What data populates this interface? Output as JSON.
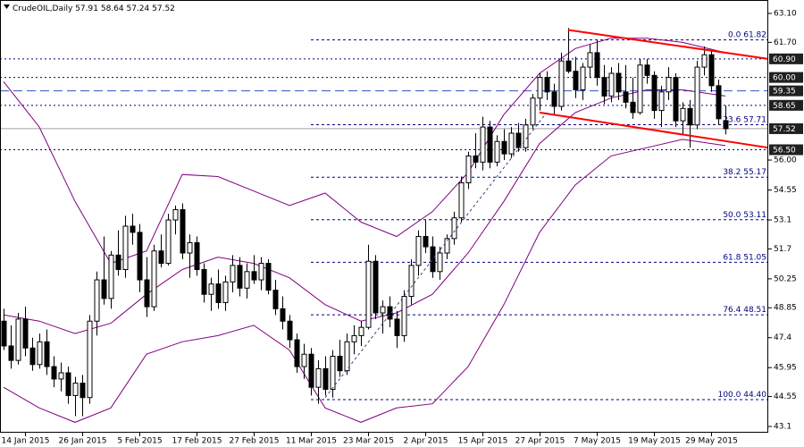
{
  "chart_data": {
    "type": "candlestick",
    "title": "CrudeOIL,Daily",
    "ohlc": [
      [
        48.2,
        48.8,
        46.8,
        47.0
      ],
      [
        47.0,
        48.0,
        45.9,
        46.3
      ],
      [
        46.3,
        48.6,
        46.1,
        48.3
      ],
      [
        48.3,
        48.9,
        46.5,
        46.9
      ],
      [
        46.9,
        47.4,
        45.8,
        46.1
      ],
      [
        46.1,
        47.6,
        45.9,
        47.2
      ],
      [
        47.2,
        47.8,
        45.6,
        46.0
      ],
      [
        46.0,
        46.5,
        45.0,
        45.4
      ],
      [
        45.4,
        46.2,
        44.8,
        45.7
      ],
      [
        45.7,
        46.0,
        44.2,
        44.6
      ],
      [
        44.6,
        45.5,
        43.6,
        45.2
      ],
      [
        45.2,
        45.6,
        43.6,
        44.5
      ],
      [
        44.5,
        48.5,
        44.2,
        48.2
      ],
      [
        48.2,
        50.6,
        47.5,
        50.2
      ],
      [
        50.2,
        52.3,
        49.0,
        49.3
      ],
      [
        49.3,
        51.6,
        48.8,
        51.4
      ],
      [
        51.4,
        52.6,
        50.4,
        50.7
      ],
      [
        50.7,
        53.3,
        50.3,
        52.8
      ],
      [
        52.8,
        53.4,
        51.9,
        52.5
      ],
      [
        52.5,
        52.9,
        49.6,
        50.2
      ],
      [
        50.2,
        51.3,
        48.4,
        48.9
      ],
      [
        48.9,
        51.9,
        48.7,
        51.6
      ],
      [
        51.6,
        52.4,
        50.8,
        51.0
      ],
      [
        51.0,
        53.4,
        50.9,
        53.1
      ],
      [
        53.1,
        53.8,
        52.4,
        53.6
      ],
      [
        53.6,
        53.9,
        51.2,
        51.5
      ],
      [
        51.5,
        52.4,
        50.3,
        52.0
      ],
      [
        52.0,
        52.3,
        50.4,
        50.7
      ],
      [
        50.7,
        51.0,
        49.1,
        49.5
      ],
      [
        49.5,
        50.3,
        48.7,
        50.0
      ],
      [
        50.0,
        50.7,
        48.8,
        49.1
      ],
      [
        49.1,
        50.4,
        48.7,
        50.1
      ],
      [
        50.1,
        51.4,
        49.6,
        50.9
      ],
      [
        50.9,
        51.3,
        49.4,
        49.8
      ],
      [
        49.8,
        51.0,
        49.3,
        50.6
      ],
      [
        50.6,
        51.4,
        50.0,
        50.2
      ],
      [
        50.2,
        51.3,
        49.7,
        51.0
      ],
      [
        51.0,
        51.2,
        49.5,
        49.7
      ],
      [
        49.7,
        50.2,
        48.5,
        48.8
      ],
      [
        48.8,
        49.4,
        47.8,
        48.2
      ],
      [
        48.2,
        48.5,
        46.9,
        47.3
      ],
      [
        47.3,
        47.6,
        45.7,
        46.0
      ],
      [
        46.0,
        47.1,
        45.4,
        46.6
      ],
      [
        46.6,
        46.9,
        44.6,
        45.0
      ],
      [
        45.0,
        46.3,
        44.2,
        45.9
      ],
      [
        45.9,
        46.5,
        44.6,
        44.9
      ],
      [
        44.9,
        46.8,
        44.5,
        46.5
      ],
      [
        46.5,
        47.3,
        45.5,
        45.8
      ],
      [
        45.8,
        47.6,
        45.6,
        47.2
      ],
      [
        47.2,
        48.0,
        46.6,
        47.5
      ],
      [
        47.5,
        48.2,
        47.0,
        47.9
      ],
      [
        47.9,
        51.9,
        47.8,
        51.1
      ],
      [
        51.1,
        51.4,
        48.3,
        48.6
      ],
      [
        48.6,
        49.2,
        47.6,
        48.9
      ],
      [
        48.9,
        49.4,
        47.9,
        48.3
      ],
      [
        48.3,
        48.7,
        46.9,
        47.5
      ],
      [
        47.5,
        49.7,
        47.2,
        49.4
      ],
      [
        49.4,
        51.2,
        49.0,
        50.9
      ],
      [
        50.9,
        52.6,
        50.4,
        52.3
      ],
      [
        52.3,
        53.1,
        51.5,
        51.8
      ],
      [
        51.8,
        52.3,
        50.3,
        50.6
      ],
      [
        50.6,
        51.8,
        50.2,
        51.5
      ],
      [
        51.5,
        52.4,
        51.2,
        52.2
      ],
      [
        52.2,
        53.5,
        51.9,
        53.2
      ],
      [
        53.2,
        55.2,
        53.0,
        54.9
      ],
      [
        54.9,
        56.4,
        54.6,
        56.2
      ],
      [
        56.2,
        57.3,
        55.6,
        55.9
      ],
      [
        55.9,
        58.1,
        55.5,
        57.6
      ],
      [
        57.6,
        57.9,
        55.6,
        55.9
      ],
      [
        55.9,
        57.2,
        55.7,
        56.9
      ],
      [
        56.9,
        57.5,
        56.0,
        56.3
      ],
      [
        56.3,
        57.6,
        56.1,
        57.3
      ],
      [
        57.3,
        57.8,
        56.4,
        56.6
      ],
      [
        56.6,
        58.0,
        56.4,
        57.7
      ],
      [
        57.7,
        59.2,
        57.5,
        59.0
      ],
      [
        59.0,
        60.2,
        58.4,
        60.0
      ],
      [
        60.0,
        60.3,
        58.9,
        59.3
      ],
      [
        59.3,
        59.7,
        58.2,
        58.6
      ],
      [
        58.6,
        61.2,
        58.4,
        60.8
      ],
      [
        60.8,
        62.4,
        60.2,
        60.3
      ],
      [
        60.3,
        61.0,
        59.0,
        59.4
      ],
      [
        59.4,
        60.7,
        58.9,
        60.5
      ],
      [
        60.5,
        61.6,
        60.0,
        61.2
      ],
      [
        61.2,
        61.8,
        59.6,
        60.0
      ],
      [
        60.0,
        60.6,
        58.7,
        59.1
      ],
      [
        59.1,
        60.5,
        58.8,
        60.2
      ],
      [
        60.2,
        60.7,
        58.9,
        59.3
      ],
      [
        59.3,
        60.6,
        58.5,
        58.8
      ],
      [
        58.8,
        60.0,
        58.0,
        58.3
      ],
      [
        58.3,
        60.9,
        58.2,
        60.6
      ],
      [
        60.6,
        60.9,
        59.7,
        60.1
      ],
      [
        60.1,
        60.3,
        58.0,
        58.4
      ],
      [
        58.4,
        59.6,
        57.6,
        59.3
      ],
      [
        59.3,
        60.5,
        58.9,
        60.0
      ],
      [
        60.0,
        60.2,
        57.6,
        57.9
      ],
      [
        57.9,
        58.8,
        57.2,
        58.5
      ],
      [
        58.5,
        58.9,
        56.6,
        57.7
      ],
      [
        57.7,
        60.8,
        57.5,
        60.5
      ],
      [
        60.5,
        61.5,
        60.1,
        61.1
      ],
      [
        61.1,
        61.3,
        59.3,
        59.6
      ],
      [
        59.6,
        59.9,
        57.7,
        58.0
      ],
      [
        57.91,
        58.64,
        57.24,
        57.52
      ]
    ],
    "bull_color": "#ffffff",
    "bear_color": "#000000",
    "bands": {
      "color": "#800080",
      "x": [
        0,
        5,
        10,
        15,
        20,
        25,
        30,
        35,
        40,
        45,
        50,
        55,
        60,
        65,
        70,
        75,
        80,
        85,
        90,
        95,
        101
      ],
      "upper": [
        59.8,
        57.6,
        54.0,
        51.0,
        51.6,
        55.3,
        55.2,
        54.5,
        53.8,
        54.4,
        53.0,
        52.3,
        53.5,
        55.4,
        58.2,
        60.2,
        61.4,
        61.9,
        61.9,
        61.7,
        61.2
      ],
      "middle": [
        48.5,
        48.2,
        47.6,
        48.1,
        49.5,
        50.7,
        51.3,
        51.0,
        50.3,
        49.0,
        48.2,
        48.6,
        49.5,
        51.5,
        54.0,
        56.8,
        58.3,
        59.0,
        59.4,
        59.4,
        59.1
      ],
      "lower": [
        45.0,
        44.0,
        43.3,
        44.0,
        46.6,
        47.2,
        47.5,
        48.0,
        46.8,
        44.0,
        43.3,
        44.0,
        44.2,
        46.0,
        49.0,
        52.5,
        54.8,
        56.2,
        56.6,
        57.0,
        56.7
      ]
    },
    "trendlines": [
      {
        "x": [
          79,
          107
        ],
        "values": [
          62.3,
          60.9
        ],
        "color": "#ff0000",
        "width": 2,
        "dashed": false
      },
      {
        "x": [
          75,
          107
        ],
        "values": [
          58.3,
          56.6
        ],
        "color": "#ff0000",
        "width": 2,
        "dashed": false
      },
      {
        "x": [
          45,
          76
        ],
        "values": [
          44.5,
          58.3
        ],
        "color": "#404080",
        "width": 1,
        "dashed": true
      }
    ],
    "levels": [
      {
        "value": 60.9,
        "label": "60.90",
        "color": "#000080",
        "style": "dot"
      },
      {
        "value": 60.0,
        "label": "60.00",
        "color": "#000080",
        "style": "dot"
      },
      {
        "value": 59.35,
        "color": "#3050c0",
        "style": "long-dash"
      },
      {
        "value": 58.65,
        "color": "#000080",
        "style": "dot"
      },
      {
        "value": 56.5,
        "label": "56.50",
        "color": "#000080",
        "style": "dot"
      }
    ],
    "fibonacci": {
      "x": [
        43,
        79
      ],
      "color": "#000080",
      "levels": [
        {
          "ratio": "0.0",
          "value": 61.82
        },
        {
          "ratio": "23.6",
          "value": 57.71
        },
        {
          "ratio": "38.2",
          "value": 55.17
        },
        {
          "ratio": "50.0",
          "value": 53.11
        },
        {
          "ratio": "61.8",
          "value": 51.05
        },
        {
          "ratio": "76.4",
          "value": 48.51
        },
        {
          "ratio": "100.0",
          "value": 44.4,
          "label": "44.40"
        }
      ]
    },
    "xlim": [
      -0.5,
      107
    ],
    "ylim": [
      42.8,
      63.75
    ],
    "yticks": [
      {
        "value": 63.1,
        "label": "63.10"
      },
      {
        "value": 61.7,
        "label": "61.70"
      },
      {
        "value": 56.0,
        "label": "56.00"
      },
      54.55,
      53.1,
      51.7,
      50.25,
      48.85,
      47.4,
      45.95,
      44.55,
      43.1
    ],
    "xticks": [
      {
        "value": 3,
        "label": "14 Jan 2015"
      },
      {
        "value": 11,
        "label": "26 Jan 2015"
      },
      {
        "value": 19,
        "label": "5 Feb 2015"
      },
      {
        "value": 27,
        "label": "17 Feb 2015"
      },
      {
        "value": 35,
        "label": "27 Feb 2015"
      },
      {
        "value": 43,
        "label": "11 Mar 2015"
      },
      {
        "value": 51,
        "label": "23 Mar 2015"
      },
      {
        "value": 59,
        "label": "2 Apr 2015"
      },
      {
        "value": 67,
        "label": "15 Apr 2015"
      },
      {
        "value": 75,
        "label": "27 Apr 2015"
      },
      {
        "value": 83,
        "label": "7 May 2015"
      },
      {
        "value": 91,
        "label": "19 May 2015"
      },
      {
        "value": 99,
        "label": "29 May 2015"
      }
    ],
    "last_price_color": "#a0a0a0"
  }
}
